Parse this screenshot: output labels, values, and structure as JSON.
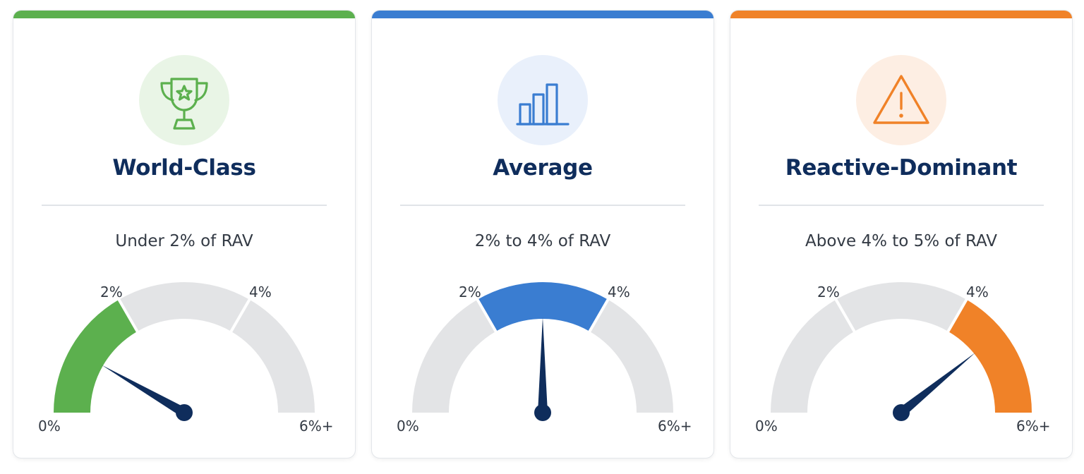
{
  "cards": [
    {
      "title": "World-Class",
      "range": "Under 2% of RAV",
      "icon": "trophy-icon",
      "accent": "#5cb04e",
      "icon_bg": "#e9f5e6",
      "active_segment": 0,
      "needle_value": 1.0,
      "labels": {
        "min": "0%",
        "t1": "2%",
        "t2": "4%",
        "max": "6%+"
      }
    },
    {
      "title": "Average",
      "range": "2% to 4% of RAV",
      "icon": "bar-chart-icon",
      "accent": "#3a7dd1",
      "icon_bg": "#e9f0fb",
      "active_segment": 1,
      "needle_value": 3.0,
      "labels": {
        "min": "0%",
        "t1": "2%",
        "t2": "4%",
        "max": "6%+"
      }
    },
    {
      "title": "Reactive-Dominant",
      "range": "Above 4% to 5% of RAV",
      "icon": "warning-icon",
      "accent": "#f08228",
      "icon_bg": "#fdeee3",
      "active_segment": 2,
      "needle_value": 4.7,
      "labels": {
        "min": "0%",
        "t1": "2%",
        "t2": "4%",
        "max": "6%+"
      }
    }
  ],
  "colors": {
    "inactive_segment": "#e3e4e6",
    "needle": "#0f2d5c",
    "title": "#0f2d5c"
  }
}
